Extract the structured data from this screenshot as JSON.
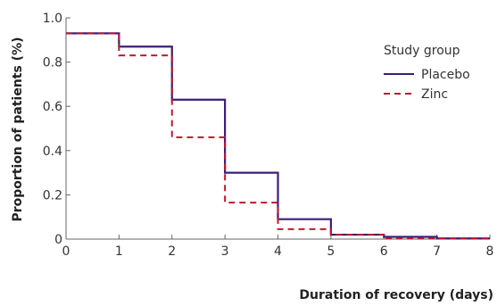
{
  "chart_data": {
    "type": "line",
    "step": true,
    "xlabel": "Duration of recovery (days)",
    "ylabel": "Proportion of patients (%)",
    "xlim": [
      0,
      8
    ],
    "ylim": [
      0,
      1.0
    ],
    "x_ticks": [
      "0",
      "1",
      "2",
      "3",
      "4",
      "5",
      "6",
      "7",
      "8"
    ],
    "y_ticks": [
      "0",
      "0.2",
      "0.4",
      "0.6",
      "0.8",
      "1.0"
    ],
    "grid": false,
    "legend": {
      "title": "Study group",
      "placement": "top-right"
    },
    "series": [
      {
        "name": "Placebo",
        "color": "#3b1e78",
        "dash": "solid",
        "x": [
          0,
          1,
          2,
          3,
          4,
          5,
          6,
          7,
          8
        ],
        "y": [
          0.93,
          0.87,
          0.63,
          0.3,
          0.09,
          0.02,
          0.01,
          0.003,
          0.003
        ]
      },
      {
        "name": "Zinc",
        "color": "#c0182e",
        "dash": "dashed",
        "x": [
          0,
          1,
          2,
          3,
          4,
          5,
          6,
          7,
          8
        ],
        "y": [
          0.93,
          0.83,
          0.46,
          0.165,
          0.045,
          0.02,
          0.003,
          0.003,
          0.003
        ]
      }
    ]
  }
}
